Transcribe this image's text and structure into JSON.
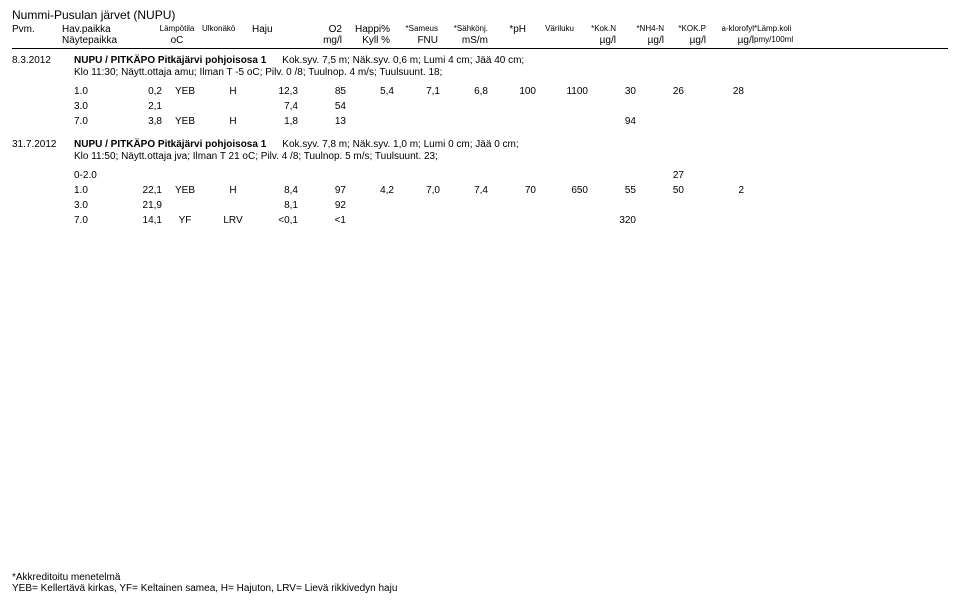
{
  "title": "Nummi-Pusulan järvet (NUPU)",
  "header": {
    "row1": {
      "pvm": "Pvm.",
      "hav": "Hav.paikka",
      "lampo": "Lämpötila",
      "ulko": "Ulkonäkö",
      "haju": "Haju",
      "o2": "O2",
      "happi": "Happi%",
      "sameus": "*Sameus",
      "sahko": "*Sähkönj.",
      "ph": "*pH",
      "vari": "Väriluku",
      "kokn": "*Kok.N",
      "nh4": "*NH4-N",
      "kokp": "*KOK.P",
      "akl": "a-klorofyl",
      "koli": "*Lämp.koli"
    },
    "row2": {
      "hav": "Näytepaikka",
      "lampo": "oC",
      "o2": "mg/l",
      "happi": "Kyll %",
      "sameus": "FNU",
      "sahko": "mS/m",
      "kokn": "µg/l",
      "nh4": "µg/l",
      "kokp": "µg/l",
      "akl": "µg/l",
      "koli": "pmy/100ml"
    }
  },
  "sections": [
    {
      "date": "8.3.2012",
      "title": "NUPU / PITKÄPO Pitkäjärvi pohjoisosa 1",
      "meta1": "Kok.syv. 7,5 m; Näk.syv. 0,6 m; Lumi 4 cm; Jää 40 cm;",
      "meta2": "Klo 11:30; Näytt.ottaja amu; Ilman T -5 oC; Pilv. 0 /8; Tuulnop. 4 m/s; Tuulsuunt. 18;",
      "rows": [
        {
          "depth": "1.0",
          "lampo": "0,2",
          "ulko": "YEB",
          "haju": "H",
          "o2": "12,3",
          "happi": "85",
          "sameus": "5,4",
          "ph": "7,1",
          "vari": "6,8",
          "kokn": "100",
          "nh4": "1100",
          "kokp": "30",
          "akl": "26",
          "extra": "28"
        },
        {
          "depth": "3.0",
          "lampo": "2,1",
          "ulko": "",
          "haju": "",
          "o2": "7,4",
          "happi": "54",
          "sameus": "",
          "ph": "",
          "vari": "",
          "kokn": "",
          "nh4": "",
          "kokp": "",
          "akl": "",
          "extra": ""
        },
        {
          "depth": "7.0",
          "lampo": "3,8",
          "ulko": "YEB",
          "haju": "H",
          "o2": "1,8",
          "happi": "13",
          "sameus": "",
          "ph": "",
          "vari": "",
          "kokn": "",
          "nh4": "",
          "kokp": "94",
          "akl": "",
          "extra": ""
        }
      ]
    },
    {
      "date": "31.7.2012",
      "title": "NUPU / PITKÄPO Pitkäjärvi pohjoisosa 1",
      "meta1": "Kok.syv. 7,8 m; Näk.syv. 1,0 m; Lumi 0 cm; Jää 0 cm;",
      "meta2": "Klo 11:50; Näytt.ottaja jva; Ilman T 21 oC; Pilv. 4 /8; Tuulnop. 5 m/s; Tuulsuunt. 23;",
      "rows": [
        {
          "depth": "0-2.0",
          "lampo": "",
          "ulko": "",
          "haju": "",
          "o2": "",
          "happi": "",
          "sameus": "",
          "ph": "",
          "vari": "",
          "kokn": "",
          "nh4": "",
          "kokp": "",
          "akl": "27",
          "extra": ""
        },
        {
          "depth": "1.0",
          "lampo": "22,1",
          "ulko": "YEB",
          "haju": "H",
          "o2": "8,4",
          "happi": "97",
          "sameus": "4,2",
          "ph": "7,0",
          "vari": "7,4",
          "kokn": "70",
          "nh4": "650",
          "kokp": "55",
          "akl": "50",
          "extra": "2"
        },
        {
          "depth": "3.0",
          "lampo": "21,9",
          "ulko": "",
          "haju": "",
          "o2": "8,1",
          "happi": "92",
          "sameus": "",
          "ph": "",
          "vari": "",
          "kokn": "",
          "nh4": "",
          "kokp": "",
          "akl": "",
          "extra": ""
        },
        {
          "depth": "7.0",
          "lampo": "14,1",
          "ulko": "YF",
          "haju": "LRV",
          "o2": "<0,1",
          "happi": "<1",
          "sameus": "",
          "ph": "",
          "vari": "",
          "kokn": "",
          "nh4": "",
          "kokp": "320",
          "akl": "",
          "extra": ""
        }
      ]
    }
  ],
  "footer": {
    "line1": "*Akkreditoitu menetelmä",
    "line2": "YEB= Kellertävä kirkas, YF= Keltainen samea, H= Hajuton, LRV= Lievä rikkivedyn haju"
  }
}
